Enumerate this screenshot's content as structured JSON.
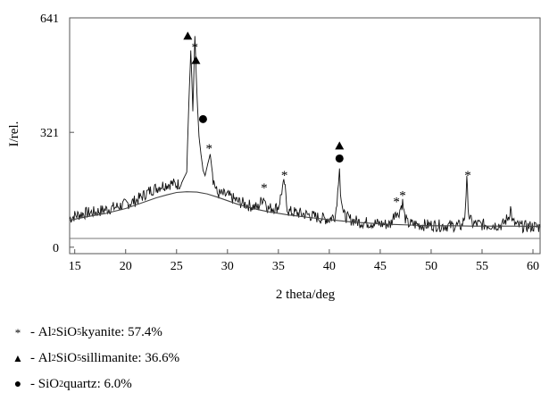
{
  "chart_data": {
    "type": "line",
    "xlabel": "2 theta/deg",
    "ylabel": "I/rel.",
    "xlim": [
      14.5,
      60.7
    ],
    "ylim": [
      -18,
      641
    ],
    "x_ticks": [
      "15",
      "20",
      "25",
      "30",
      "35",
      "40",
      "45",
      "50",
      "55",
      "60"
    ],
    "y_ticks": [
      "641",
      "321",
      "0"
    ],
    "series": [
      {
        "role": "diffraction-pattern",
        "x": [
          14.5,
          15,
          16,
          17,
          18,
          19,
          20,
          21,
          22,
          22.5,
          23,
          23.5,
          24,
          24.5,
          25,
          25.5,
          26,
          26.2,
          26.4,
          26.5,
          26.6,
          26.8,
          27.0,
          27.2,
          27.4,
          27.6,
          27.8,
          28.0,
          28.3,
          28.6,
          29,
          30,
          31,
          32,
          33,
          33.4,
          33.6,
          33.8,
          34,
          34.5,
          35,
          35.4,
          35.6,
          35.8,
          36,
          37,
          38,
          39,
          40,
          40.6,
          40.9,
          41.0,
          41.1,
          41.4,
          42,
          43,
          44,
          45,
          46,
          46.3,
          46.5,
          46.7,
          47.0,
          47.2,
          47.4,
          47.7,
          48,
          49,
          50,
          51,
          52,
          53,
          53.3,
          53.5,
          53.7,
          54,
          55,
          56,
          57,
          57.6,
          57.8,
          58,
          58.5,
          59,
          60,
          60.7
        ],
        "y": [
          80,
          88,
          95,
          98,
          105,
          112,
          120,
          130,
          150,
          160,
          165,
          172,
          175,
          178,
          175,
          180,
          210,
          400,
          550,
          470,
          380,
          590,
          430,
          310,
          260,
          215,
          200,
          225,
          260,
          190,
          150,
          145,
          128,
          118,
          110,
          135,
          140,
          120,
          108,
          110,
          112,
          165,
          180,
          120,
          100,
          95,
          90,
          82,
          78,
          90,
          175,
          220,
          160,
          90,
          78,
          70,
          68,
          65,
          64,
          85,
          105,
          88,
          110,
          125,
          85,
          66,
          65,
          62,
          62,
          60,
          60,
          60,
          85,
          185,
          90,
          66,
          63,
          62,
          62,
          85,
          110,
          70,
          60,
          58,
          58,
          56
        ]
      },
      {
        "role": "background-fit",
        "x": [
          14.5,
          16,
          18,
          20,
          21,
          22,
          23,
          24,
          25,
          26,
          27,
          28,
          29,
          30,
          31,
          32,
          33,
          34,
          36,
          38,
          40,
          42,
          44,
          46,
          48,
          50,
          52,
          54,
          56,
          58,
          60.7
        ],
        "y": [
          75,
          84,
          94,
          108,
          118,
          128,
          138,
          146,
          153,
          155,
          154,
          149,
          140,
          130,
          120,
          112,
          105,
          99,
          90,
          83,
          77,
          71,
          67,
          64,
          62,
          60,
          60,
          59,
          59,
          59,
          58
        ]
      }
    ],
    "peak_markers": [
      {
        "phase": "kyanite",
        "symbol": "*",
        "x": 26.8,
        "y": 565
      },
      {
        "phase": "kyanite",
        "symbol": "*",
        "x": 28.2,
        "y": 282
      },
      {
        "phase": "kyanite",
        "symbol": "*",
        "x": 33.6,
        "y": 172
      },
      {
        "phase": "kyanite",
        "symbol": "*",
        "x": 35.6,
        "y": 207
      },
      {
        "phase": "kyanite",
        "symbol": "*",
        "x": 46.6,
        "y": 133
      },
      {
        "phase": "kyanite",
        "symbol": "*",
        "x": 47.2,
        "y": 151
      },
      {
        "phase": "kyanite",
        "symbol": "*",
        "x": 53.6,
        "y": 207
      },
      {
        "phase": "sillimanite",
        "symbol": "triangle",
        "x": 26.1,
        "y": 590
      },
      {
        "phase": "sillimanite",
        "symbol": "triangle",
        "x": 26.9,
        "y": 522
      },
      {
        "phase": "sillimanite",
        "symbol": "triangle",
        "x": 41.0,
        "y": 283
      },
      {
        "phase": "quartz",
        "symbol": "circle",
        "x": 27.6,
        "y": 358
      },
      {
        "phase": "quartz",
        "symbol": "circle",
        "x": 41.0,
        "y": 248
      }
    ],
    "legend": [
      {
        "symbol": "*",
        "formula_parts": [
          "Al",
          "2",
          "SiO",
          "5"
        ],
        "mineral": "kyanite",
        "percent": "57.4%"
      },
      {
        "symbol": "▲",
        "formula_parts": [
          "Al",
          "2",
          "SiO",
          "5"
        ],
        "mineral": "sillimanite",
        "percent": "36.6%"
      },
      {
        "symbol": "●",
        "formula_parts": [
          "SiO",
          "2"
        ],
        "mineral": "quartz",
        "percent": "6.0%"
      }
    ],
    "legend_text": {
      "kyanite": " kyanite: 57.4%",
      "sillimanite": " sillimanite: 36.6%",
      "quartz": " quartz: 6.0%"
    },
    "grid": false,
    "legend_placement": "below"
  }
}
